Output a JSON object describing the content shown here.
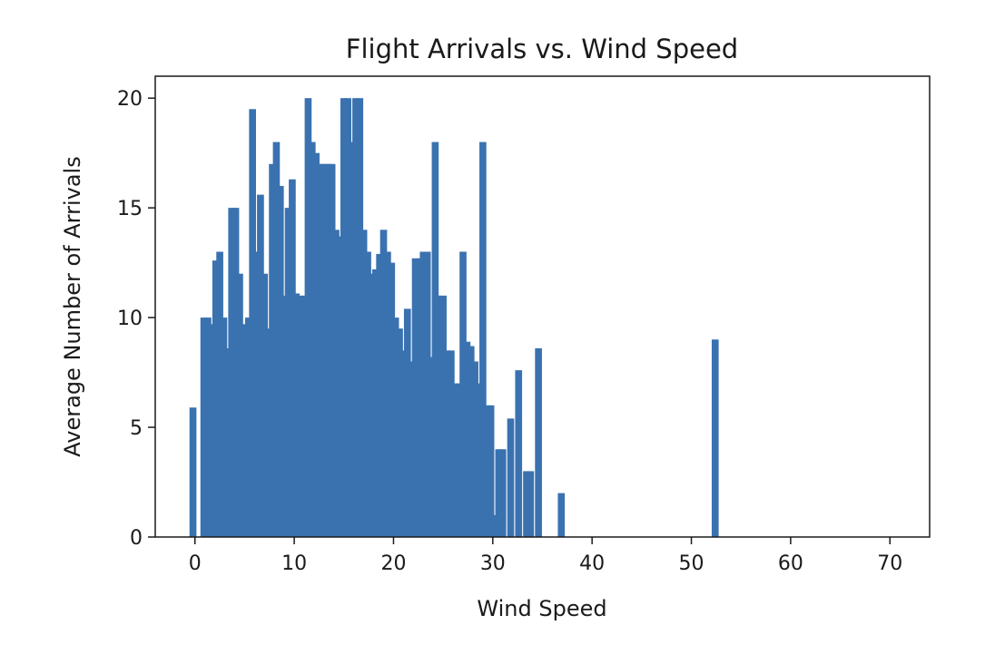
{
  "chart_data": {
    "type": "bar",
    "title": "Flight Arrivals vs. Wind Speed",
    "xlabel": "Wind Speed",
    "ylabel": "Average Number of Arrivals",
    "xlim": [
      -4,
      74
    ],
    "ylim": [
      0,
      21
    ],
    "xticks": [
      0,
      10,
      20,
      30,
      40,
      50,
      60,
      70
    ],
    "yticks": [
      0,
      5,
      10,
      15,
      20
    ],
    "bar_color": "#3a72b0",
    "bar_width": 0.7,
    "grid": false,
    "legend": "none",
    "x": [
      -0.2,
      0.9,
      1.3,
      1.7,
      2.1,
      2.5,
      2.9,
      3.3,
      3.7,
      4.1,
      4.5,
      5.0,
      5.4,
      5.8,
      6.2,
      6.6,
      7.0,
      7.4,
      7.8,
      8.2,
      8.6,
      9.0,
      9.4,
      9.8,
      10.2,
      10.6,
      11.0,
      11.4,
      11.8,
      12.2,
      12.6,
      13.0,
      13.4,
      13.8,
      14.2,
      14.6,
      15.0,
      15.4,
      15.8,
      16.2,
      16.6,
      17.0,
      17.4,
      17.8,
      18.2,
      18.6,
      19.0,
      19.4,
      19.8,
      20.2,
      20.6,
      21.0,
      21.4,
      21.8,
      22.2,
      22.6,
      23.0,
      23.4,
      23.8,
      24.2,
      24.6,
      25.0,
      25.4,
      25.8,
      26.2,
      26.6,
      27.0,
      27.4,
      27.8,
      28.2,
      28.6,
      29.0,
      29.4,
      29.8,
      30.2,
      30.6,
      31.0,
      31.4,
      31.8,
      32.2,
      32.6,
      33.0,
      33.4,
      33.8,
      34.2,
      34.6,
      35.0,
      36.9,
      52.4
    ],
    "values": [
      5.9,
      10.0,
      10.0,
      9.7,
      12.6,
      13.0,
      10.0,
      8.6,
      15.0,
      15.0,
      12.0,
      9.7,
      10.0,
      19.5,
      13.0,
      15.6,
      12.0,
      9.5,
      17.0,
      18.0,
      16.0,
      11.0,
      15.0,
      16.3,
      11.1,
      11.0,
      11.0,
      20.0,
      18.0,
      17.5,
      17.0,
      17.0,
      17.0,
      17.0,
      14.0,
      13.7,
      20.0,
      20.0,
      18.0,
      20.0,
      20.0,
      14.0,
      13.0,
      12.0,
      12.2,
      12.9,
      14.0,
      13.0,
      12.5,
      10.0,
      9.5,
      8.5,
      10.4,
      8.0,
      12.7,
      12.7,
      13.0,
      13.0,
      8.2,
      18.0,
      11.0,
      11.0,
      8.5,
      8.5,
      7.0,
      7.0,
      13.0,
      8.9,
      8.7,
      8.0,
      7.0,
      18.0,
      6.0,
      6.0,
      1.0,
      4.0,
      4.0,
      0.0,
      5.4,
      0.0,
      7.6,
      0.0,
      3.0,
      3.0,
      0.0,
      8.6,
      0.0,
      2.0,
      9.0
    ]
  }
}
